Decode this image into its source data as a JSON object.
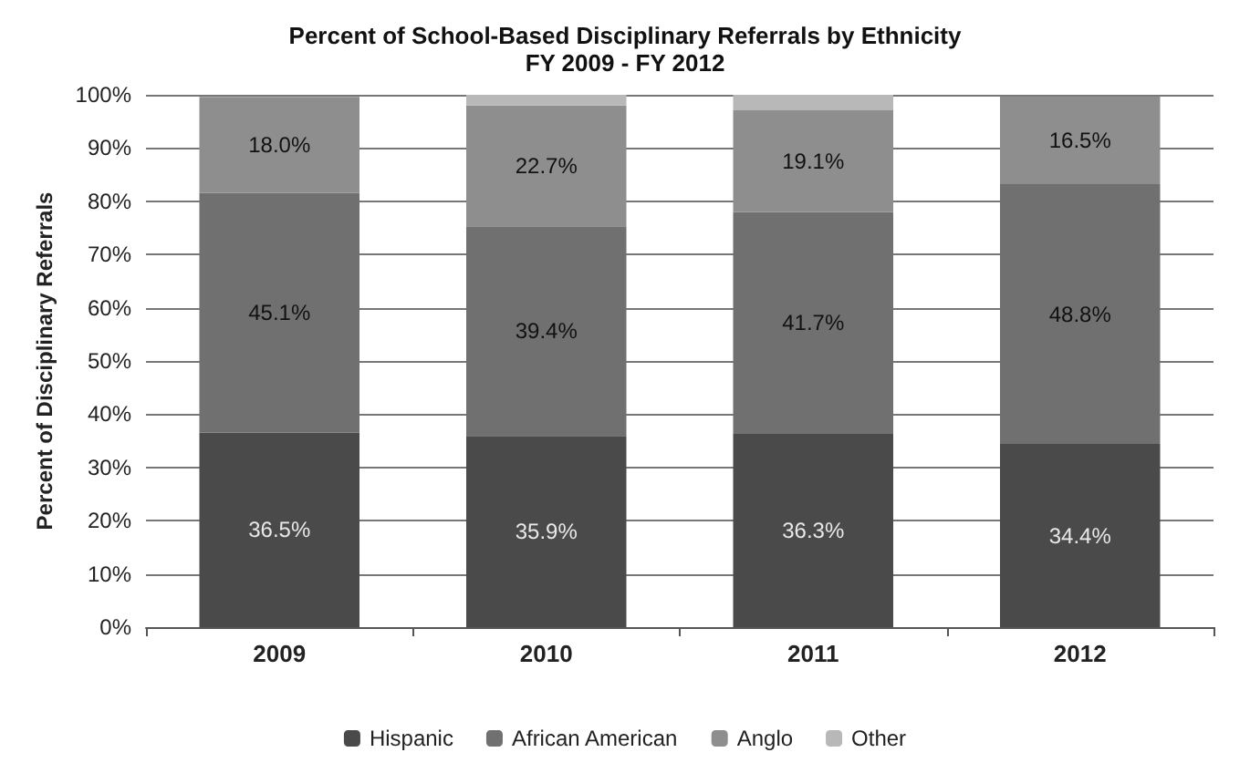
{
  "chart_data": {
    "type": "bar",
    "title": "Percent of School-Based Disciplinary Referrals by Ethnicity",
    "subtitle": "FY 2009 - FY 2012",
    "ylabel": "Percent of Disciplinary Referrals",
    "categories": [
      "2009",
      "2010",
      "2011",
      "2012"
    ],
    "stacked": true,
    "series": [
      {
        "name": "Hispanic",
        "color": "#4a4a4a",
        "values": [
          36.5,
          35.9,
          36.3,
          34.4
        ],
        "value_labels": [
          "36.5%",
          "35.9%",
          "36.3%",
          "34.4%"
        ]
      },
      {
        "name": "African American",
        "color": "#707070",
        "values": [
          45.1,
          39.4,
          41.7,
          48.8
        ],
        "value_labels": [
          "45.1%",
          "39.4%",
          "41.7%",
          "48.8%"
        ]
      },
      {
        "name": "Anglo",
        "color": "#8e8e8e",
        "values": [
          18.0,
          22.7,
          19.1,
          16.5
        ],
        "value_labels": [
          "18.0%",
          "22.7%",
          "19.1%",
          "16.5%"
        ]
      },
      {
        "name": "Other",
        "color": "#b8b8b8",
        "values": [
          null,
          2.0,
          2.9,
          null
        ],
        "value_labels": [
          null,
          null,
          null,
          null
        ]
      }
    ],
    "ylim": [
      0,
      100
    ],
    "yticks": [
      {
        "value": 0,
        "label": "0%"
      },
      {
        "value": 10,
        "label": "10%"
      },
      {
        "value": 20,
        "label": "20%"
      },
      {
        "value": 30,
        "label": "30%"
      },
      {
        "value": 40,
        "label": "40%"
      },
      {
        "value": 50,
        "label": "50%"
      },
      {
        "value": 60,
        "label": "60%"
      },
      {
        "value": 70,
        "label": "70%"
      },
      {
        "value": 80,
        "label": "80%"
      },
      {
        "value": 90,
        "label": "90%"
      },
      {
        "value": 100,
        "label": "100%"
      }
    ],
    "grid": "y",
    "legend": "bottom"
  }
}
